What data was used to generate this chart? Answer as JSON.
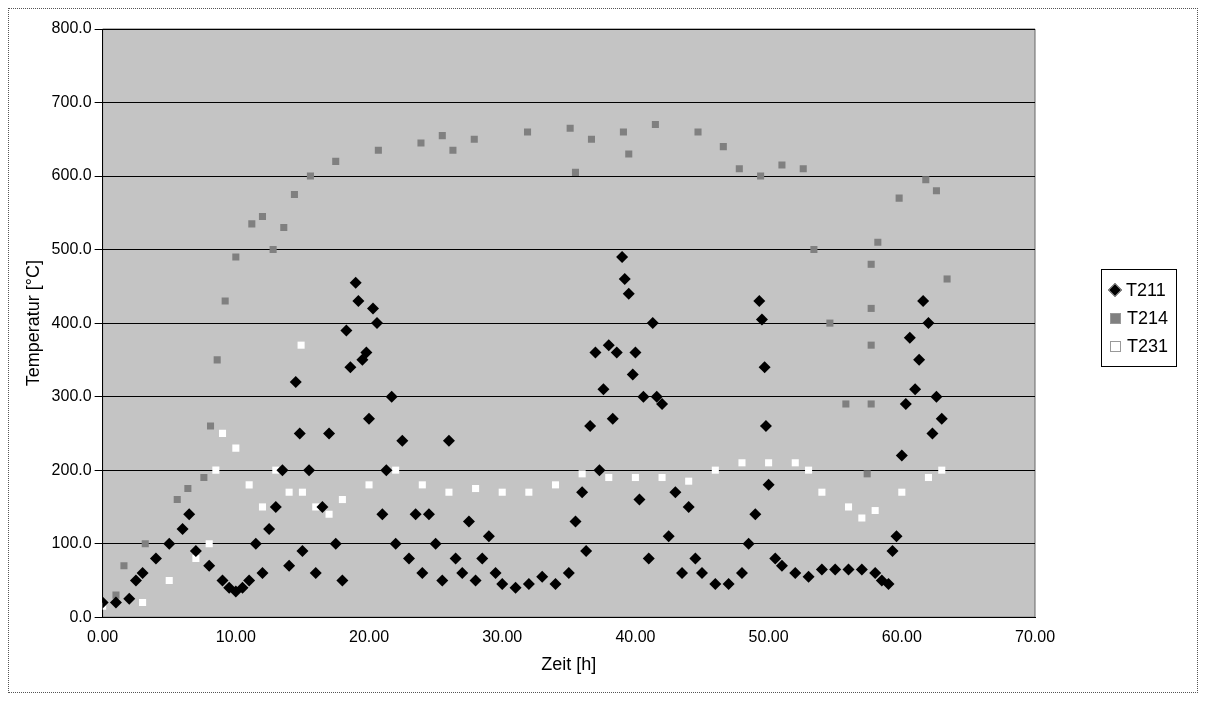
{
  "chart_data": {
    "type": "scatter",
    "xlabel": "Zeit [h]",
    "ylabel": "Temperatur [°C]",
    "xlim": [
      0,
      70
    ],
    "xticks": [
      {
        "value": 0,
        "label": "0.00"
      },
      {
        "value": 10,
        "label": "10.00"
      },
      {
        "value": 20,
        "label": "20.00"
      },
      {
        "value": 30,
        "label": "30.00"
      },
      {
        "value": 40,
        "label": "40.00"
      },
      {
        "value": 50,
        "label": "50.00"
      },
      {
        "value": 60,
        "label": "60.00"
      },
      {
        "value": 70,
        "label": "70.00"
      }
    ],
    "ylim": [
      0,
      800
    ],
    "yticks": [
      {
        "value": 0,
        "label": "0.0"
      },
      {
        "value": 100,
        "label": "100.0"
      },
      {
        "value": 200,
        "label": "200.0"
      },
      {
        "value": 300,
        "label": "300.0"
      },
      {
        "value": 400,
        "label": "400.0"
      },
      {
        "value": 500,
        "label": "500.0"
      },
      {
        "value": 600,
        "label": "600.0"
      },
      {
        "value": 700,
        "label": "700.0"
      },
      {
        "value": 800,
        "label": "800.0"
      }
    ],
    "grid": "y",
    "legend": "right",
    "series": [
      {
        "name": "T211",
        "color": "#000000",
        "marker": "diamond",
        "x": [
          0,
          1,
          2,
          2.5,
          3,
          4,
          5,
          6,
          6.5,
          7,
          8,
          9,
          9.5,
          10,
          10.5,
          11,
          11.5,
          12,
          12.5,
          13,
          13.5,
          14,
          14.5,
          14.8,
          15,
          15.5,
          16,
          16.5,
          17,
          17.5,
          18,
          18.3,
          18.6,
          19,
          19.2,
          19.5,
          19.8,
          20,
          20.3,
          20.6,
          21,
          21.3,
          21.7,
          22,
          22.5,
          23,
          23.5,
          24,
          24.5,
          25,
          25.5,
          26,
          26.5,
          27,
          27.5,
          28,
          28.5,
          29,
          29.5,
          30,
          31,
          32,
          33,
          34,
          35,
          35.5,
          36,
          36.3,
          36.6,
          37,
          37.3,
          37.6,
          38,
          38.3,
          38.6,
          39,
          39.2,
          39.5,
          39.8,
          40,
          40.3,
          40.6,
          41,
          41.3,
          41.6,
          42,
          42.5,
          43,
          43.5,
          44,
          44.5,
          45,
          46,
          47,
          48,
          48.5,
          49,
          49.3,
          49.5,
          49.7,
          49.8,
          50,
          50.5,
          51,
          52,
          53,
          54,
          55,
          56,
          57,
          58,
          58.5,
          59,
          59.3,
          59.6,
          60,
          60.3,
          60.6,
          61,
          61.3,
          61.6,
          62,
          62.3,
          62.6,
          63
        ],
        "values": [
          20,
          20,
          25,
          50,
          60,
          80,
          100,
          120,
          140,
          90,
          70,
          50,
          40,
          35,
          40,
          50,
          100,
          60,
          120,
          150,
          200,
          70,
          320,
          250,
          90,
          200,
          60,
          150,
          250,
          100,
          50,
          390,
          340,
          455,
          430,
          350,
          360,
          270,
          420,
          400,
          140,
          200,
          300,
          100,
          240,
          80,
          140,
          60,
          140,
          100,
          50,
          240,
          80,
          60,
          130,
          50,
          80,
          110,
          60,
          45,
          40,
          45,
          55,
          45,
          60,
          130,
          170,
          90,
          260,
          360,
          200,
          310,
          370,
          270,
          360,
          490,
          460,
          440,
          330,
          360,
          160,
          300,
          80,
          400,
          300,
          290,
          110,
          170,
          60,
          150,
          80,
          60,
          45,
          45,
          60,
          100,
          140,
          430,
          405,
          340,
          260,
          180,
          80,
          70,
          60,
          55,
          65,
          65,
          65,
          65,
          60,
          50,
          45,
          90,
          110,
          220,
          290,
          380,
          310,
          350,
          430,
          400,
          250,
          300,
          270
        ]
      },
      {
        "name": "T214",
        "color": "#808080",
        "marker": "square",
        "x": [
          1,
          1.6,
          3.2,
          5.6,
          6.4,
          7.6,
          8.1,
          8.6,
          9.2,
          10,
          11.2,
          12,
          12.8,
          13.6,
          14.4,
          15.6,
          17.5,
          20.7,
          23.9,
          25.5,
          26.3,
          27.9,
          31.9,
          35.1,
          35.5,
          36.7,
          39.1,
          39.5,
          41.5,
          44.7,
          46.6,
          47.8,
          49.4,
          51,
          52.6,
          53.4,
          54.6,
          55.8,
          57.4,
          57.7,
          57.7,
          57.7,
          57.7,
          58.2,
          59.8,
          61.8,
          62.6,
          63.4
        ],
        "values": [
          30,
          70,
          100,
          160,
          175,
          190,
          260,
          350,
          430,
          490,
          535,
          545,
          500,
          530,
          575,
          600,
          620,
          635,
          645,
          655,
          635,
          650,
          660,
          665,
          605,
          650,
          660,
          630,
          670,
          660,
          640,
          610,
          600,
          615,
          610,
          500,
          400,
          290,
          195,
          290,
          370,
          420,
          480,
          510,
          570,
          595,
          580,
          460
        ]
      },
      {
        "name": "T231",
        "color": "#ffffff",
        "marker": "square",
        "x": [
          0,
          3,
          5,
          7,
          8,
          8.5,
          9,
          10,
          11,
          12,
          13,
          14,
          14.9,
          15,
          16,
          17,
          18,
          20,
          22,
          24,
          26,
          28,
          30,
          32,
          34,
          36,
          38,
          40,
          42,
          44,
          46,
          48,
          50,
          52,
          53,
          54,
          56,
          57,
          58,
          60,
          62,
          63
        ],
        "values": [
          15,
          20,
          50,
          80,
          100,
          200,
          250,
          230,
          180,
          150,
          200,
          170,
          370,
          170,
          150,
          140,
          160,
          180,
          200,
          180,
          170,
          175,
          170,
          170,
          180,
          195,
          190,
          190,
          190,
          185,
          200,
          210,
          210,
          210,
          200,
          170,
          150,
          135,
          145,
          170,
          190,
          200
        ]
      }
    ]
  }
}
